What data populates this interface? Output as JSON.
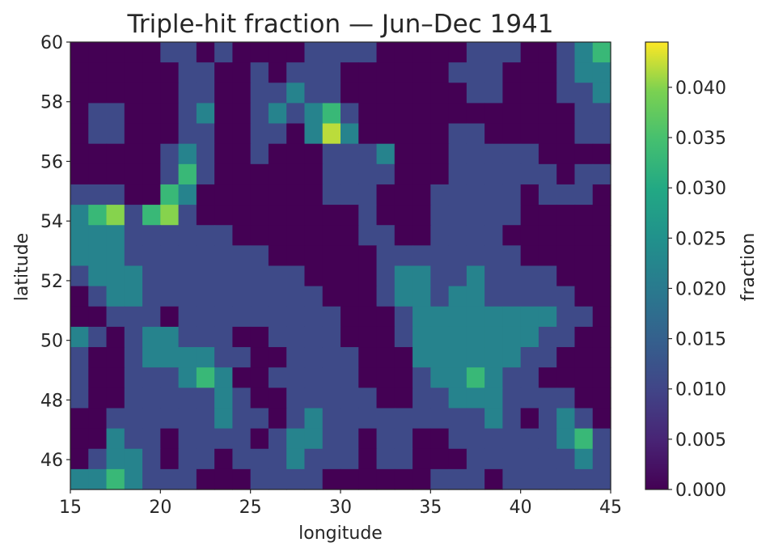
{
  "chart_data": {
    "type": "heatmap",
    "title": "Triple-hit fraction — Jun–Dec 1941",
    "xlabel": "longitude",
    "ylabel": "latitude",
    "xlim": [
      15,
      45
    ],
    "ylim": [
      45,
      60
    ],
    "x_ticks": [
      {
        "value": 15,
        "label": "15"
      },
      {
        "value": 20,
        "label": "20"
      },
      {
        "value": 25,
        "label": "25"
      },
      {
        "value": 30,
        "label": "30"
      },
      {
        "value": 35,
        "label": "35"
      },
      {
        "value": 40,
        "label": "40"
      },
      {
        "value": 45,
        "label": "45"
      }
    ],
    "y_ticks": [
      {
        "value": 46,
        "label": "46"
      },
      {
        "value": 48,
        "label": "48"
      },
      {
        "value": 50,
        "label": "50"
      },
      {
        "value": 52,
        "label": "52"
      },
      {
        "value": 54,
        "label": "54"
      },
      {
        "value": 56,
        "label": "56"
      },
      {
        "value": 58,
        "label": "58"
      },
      {
        "value": 60,
        "label": "60"
      }
    ],
    "colormap": "viridis",
    "grid": false,
    "colorbar": {
      "label": "fraction",
      "range": [
        0.0,
        0.0445
      ],
      "ticks": [
        {
          "value": 0.0,
          "label": "0.000"
        },
        {
          "value": 0.005,
          "label": "0.005"
        },
        {
          "value": 0.01,
          "label": "0.010"
        },
        {
          "value": 0.015,
          "label": "0.015"
        },
        {
          "value": 0.02,
          "label": "0.020"
        },
        {
          "value": 0.025,
          "label": "0.025"
        },
        {
          "value": 0.03,
          "label": "0.030"
        },
        {
          "value": 0.035,
          "label": "0.035"
        },
        {
          "value": 0.04,
          "label": "0.040"
        }
      ]
    },
    "grid_resolution_deg": 1.0,
    "values_row_order": "north-to-south (first row = 60–59°N), columns west-to-east (first column = 15–16°E)",
    "values": [
      [
        0.0,
        0.0,
        0.0,
        0.0,
        0.0,
        0.011,
        0.011,
        0.0,
        0.011,
        0.0,
        0.0,
        0.0,
        0.0,
        0.011,
        0.011,
        0.011,
        0.011,
        0.0,
        0.0,
        0.0,
        0.0,
        0.0,
        0.011,
        0.011,
        0.011,
        0.0,
        0.0,
        0.011,
        0.022,
        0.033
      ],
      [
        0.0,
        0.0,
        0.0,
        0.0,
        0.0,
        0.0,
        0.011,
        0.011,
        0.0,
        0.0,
        0.011,
        0.0,
        0.011,
        0.011,
        0.011,
        0.0,
        0.0,
        0.0,
        0.0,
        0.0,
        0.0,
        0.011,
        0.011,
        0.011,
        0.0,
        0.0,
        0.0,
        0.011,
        0.022,
        0.022
      ],
      [
        0.0,
        0.0,
        0.0,
        0.0,
        0.0,
        0.0,
        0.011,
        0.011,
        0.0,
        0.0,
        0.011,
        0.011,
        0.022,
        0.011,
        0.011,
        0.0,
        0.0,
        0.0,
        0.0,
        0.0,
        0.0,
        0.0,
        0.011,
        0.011,
        0.0,
        0.0,
        0.0,
        0.011,
        0.011,
        0.022
      ],
      [
        0.0,
        0.011,
        0.011,
        0.0,
        0.0,
        0.0,
        0.011,
        0.022,
        0.0,
        0.0,
        0.011,
        0.022,
        0.011,
        0.022,
        0.033,
        0.011,
        0.0,
        0.0,
        0.0,
        0.0,
        0.0,
        0.0,
        0.0,
        0.0,
        0.0,
        0.0,
        0.0,
        0.0,
        0.011,
        0.011
      ],
      [
        0.0,
        0.011,
        0.011,
        0.0,
        0.0,
        0.0,
        0.011,
        0.011,
        0.0,
        0.0,
        0.011,
        0.011,
        0.0,
        0.022,
        0.042,
        0.022,
        0.0,
        0.0,
        0.0,
        0.0,
        0.0,
        0.011,
        0.011,
        0.0,
        0.0,
        0.0,
        0.0,
        0.0,
        0.011,
        0.011
      ],
      [
        0.0,
        0.0,
        0.0,
        0.0,
        0.0,
        0.011,
        0.022,
        0.011,
        0.0,
        0.0,
        0.011,
        0.0,
        0.0,
        0.0,
        0.011,
        0.011,
        0.011,
        0.022,
        0.0,
        0.0,
        0.0,
        0.011,
        0.011,
        0.011,
        0.011,
        0.011,
        0.0,
        0.0,
        0.0,
        0.0
      ],
      [
        0.0,
        0.0,
        0.0,
        0.0,
        0.0,
        0.011,
        0.033,
        0.011,
        0.0,
        0.0,
        0.0,
        0.0,
        0.0,
        0.0,
        0.011,
        0.011,
        0.011,
        0.011,
        0.0,
        0.0,
        0.0,
        0.011,
        0.011,
        0.011,
        0.011,
        0.011,
        0.011,
        0.0,
        0.011,
        0.011
      ],
      [
        0.011,
        0.011,
        0.011,
        0.0,
        0.0,
        0.033,
        0.022,
        0.0,
        0.0,
        0.0,
        0.0,
        0.0,
        0.0,
        0.0,
        0.011,
        0.011,
        0.011,
        0.0,
        0.0,
        0.0,
        0.011,
        0.011,
        0.011,
        0.011,
        0.011,
        0.0,
        0.011,
        0.011,
        0.011,
        0.0
      ],
      [
        0.022,
        0.033,
        0.04,
        0.011,
        0.033,
        0.04,
        0.011,
        0.0,
        0.0,
        0.0,
        0.0,
        0.0,
        0.0,
        0.0,
        0.0,
        0.0,
        0.011,
        0.0,
        0.0,
        0.0,
        0.011,
        0.011,
        0.011,
        0.011,
        0.011,
        0.0,
        0.0,
        0.0,
        0.0,
        0.0
      ],
      [
        0.022,
        0.022,
        0.022,
        0.011,
        0.011,
        0.011,
        0.011,
        0.011,
        0.011,
        0.0,
        0.0,
        0.0,
        0.0,
        0.0,
        0.0,
        0.0,
        0.011,
        0.011,
        0.0,
        0.0,
        0.011,
        0.011,
        0.011,
        0.011,
        0.0,
        0.0,
        0.0,
        0.0,
        0.0,
        0.0
      ],
      [
        0.022,
        0.022,
        0.022,
        0.011,
        0.011,
        0.011,
        0.011,
        0.011,
        0.011,
        0.011,
        0.011,
        0.0,
        0.0,
        0.0,
        0.0,
        0.0,
        0.0,
        0.011,
        0.011,
        0.011,
        0.011,
        0.011,
        0.011,
        0.011,
        0.011,
        0.0,
        0.0,
        0.0,
        0.0,
        0.0
      ],
      [
        0.011,
        0.022,
        0.022,
        0.022,
        0.011,
        0.011,
        0.011,
        0.011,
        0.011,
        0.011,
        0.011,
        0.011,
        0.011,
        0.0,
        0.0,
        0.0,
        0.0,
        0.011,
        0.022,
        0.022,
        0.011,
        0.011,
        0.022,
        0.011,
        0.011,
        0.011,
        0.011,
        0.0,
        0.0,
        0.0
      ],
      [
        0.0,
        0.011,
        0.022,
        0.022,
        0.011,
        0.011,
        0.011,
        0.011,
        0.011,
        0.011,
        0.011,
        0.011,
        0.011,
        0.011,
        0.0,
        0.0,
        0.0,
        0.011,
        0.022,
        0.022,
        0.011,
        0.022,
        0.022,
        0.011,
        0.011,
        0.011,
        0.011,
        0.011,
        0.0,
        0.0
      ],
      [
        0.0,
        0.0,
        0.011,
        0.011,
        0.011,
        0.0,
        0.011,
        0.011,
        0.011,
        0.011,
        0.011,
        0.011,
        0.011,
        0.011,
        0.011,
        0.0,
        0.0,
        0.0,
        0.011,
        0.022,
        0.022,
        0.022,
        0.022,
        0.022,
        0.022,
        0.022,
        0.022,
        0.011,
        0.011,
        0.0
      ],
      [
        0.022,
        0.011,
        0.0,
        0.011,
        0.022,
        0.022,
        0.011,
        0.011,
        0.011,
        0.0,
        0.0,
        0.011,
        0.011,
        0.011,
        0.011,
        0.0,
        0.0,
        0.0,
        0.011,
        0.022,
        0.022,
        0.022,
        0.022,
        0.022,
        0.022,
        0.022,
        0.011,
        0.011,
        0.0,
        0.0
      ],
      [
        0.011,
        0.0,
        0.0,
        0.011,
        0.022,
        0.022,
        0.022,
        0.022,
        0.011,
        0.011,
        0.0,
        0.0,
        0.011,
        0.011,
        0.011,
        0.011,
        0.0,
        0.0,
        0.0,
        0.022,
        0.022,
        0.022,
        0.022,
        0.022,
        0.022,
        0.011,
        0.011,
        0.0,
        0.0,
        0.0
      ],
      [
        0.011,
        0.0,
        0.0,
        0.011,
        0.011,
        0.011,
        0.022,
        0.033,
        0.022,
        0.0,
        0.0,
        0.011,
        0.011,
        0.011,
        0.011,
        0.011,
        0.0,
        0.0,
        0.0,
        0.011,
        0.022,
        0.022,
        0.033,
        0.022,
        0.011,
        0.011,
        0.0,
        0.0,
        0.0,
        0.0
      ],
      [
        0.011,
        0.0,
        0.0,
        0.011,
        0.011,
        0.011,
        0.011,
        0.011,
        0.022,
        0.011,
        0.0,
        0.0,
        0.011,
        0.011,
        0.011,
        0.011,
        0.011,
        0.0,
        0.0,
        0.011,
        0.011,
        0.022,
        0.022,
        0.022,
        0.011,
        0.011,
        0.011,
        0.011,
        0.0,
        0.0
      ],
      [
        0.0,
        0.0,
        0.011,
        0.011,
        0.011,
        0.011,
        0.011,
        0.011,
        0.022,
        0.011,
        0.011,
        0.0,
        0.011,
        0.022,
        0.011,
        0.011,
        0.011,
        0.011,
        0.011,
        0.011,
        0.011,
        0.011,
        0.011,
        0.022,
        0.011,
        0.0,
        0.011,
        0.022,
        0.011,
        0.0
      ],
      [
        0.0,
        0.0,
        0.022,
        0.011,
        0.011,
        0.0,
        0.011,
        0.011,
        0.011,
        0.011,
        0.0,
        0.011,
        0.022,
        0.022,
        0.011,
        0.011,
        0.0,
        0.011,
        0.011,
        0.0,
        0.0,
        0.011,
        0.011,
        0.011,
        0.011,
        0.011,
        0.011,
        0.022,
        0.033,
        0.011
      ],
      [
        0.0,
        0.011,
        0.022,
        0.022,
        0.011,
        0.0,
        0.011,
        0.011,
        0.0,
        0.011,
        0.011,
        0.011,
        0.022,
        0.011,
        0.011,
        0.011,
        0.0,
        0.011,
        0.011,
        0.0,
        0.0,
        0.0,
        0.011,
        0.011,
        0.011,
        0.011,
        0.011,
        0.011,
        0.022,
        0.011
      ],
      [
        0.022,
        0.022,
        0.033,
        0.022,
        0.011,
        0.011,
        0.011,
        0.0,
        0.0,
        0.0,
        0.011,
        0.011,
        0.011,
        0.011,
        0.0,
        0.0,
        0.0,
        0.0,
        0.0,
        0.0,
        0.011,
        0.011,
        0.011,
        0.0,
        0.011,
        0.011,
        0.011,
        0.011,
        0.011,
        0.011
      ]
    ],
    "values_note": "display grid is upsampled to 2x2 cells per value in the markup; estimates read from colours, 22 rows × 30 columns covering 60–45°N at ~0.68° per row"
  }
}
